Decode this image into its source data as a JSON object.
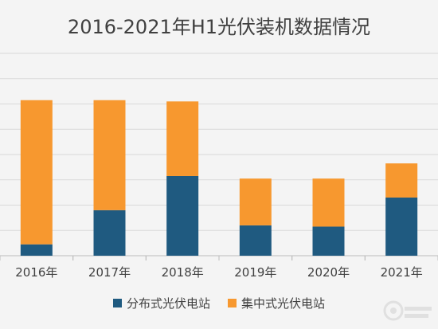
{
  "chart_data": {
    "type": "bar",
    "stacked": true,
    "title": "2016-2021年H1光伏装机数据情况",
    "categories": [
      "2016年",
      "2017年",
      "2018年",
      "2019年",
      "2020年",
      "2021年"
    ],
    "series": [
      {
        "name": "分布式光伏电站",
        "color": "#1f5a80",
        "values": [
          0.9,
          3.6,
          6.3,
          2.4,
          2.3,
          4.6
        ]
      },
      {
        "name": "集中式光伏电站",
        "color": "#f7982f",
        "values": [
          11.4,
          8.7,
          5.9,
          3.7,
          3.8,
          2.7
        ]
      }
    ],
    "ylim": [
      0,
      16
    ],
    "grid": true,
    "legend": "bottom"
  }
}
